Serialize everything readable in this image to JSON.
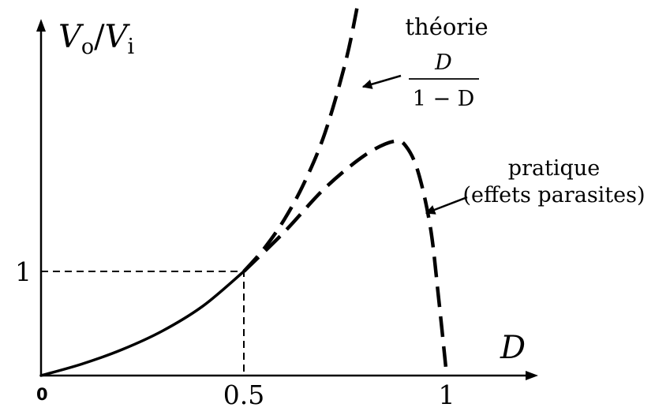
{
  "chart_data": {
    "type": "line",
    "title": "",
    "ylabel": {
      "V": "V",
      "o": "o",
      "slash": "/",
      "i": "i"
    },
    "xlabel": "D",
    "xlim": [
      0,
      1.3
    ],
    "ylim": [
      0,
      4.2
    ],
    "x_ticks": [
      {
        "value": 0,
        "label": "0"
      },
      {
        "value": 0.5,
        "label": "0.5"
      },
      {
        "value": 1,
        "label": "1"
      }
    ],
    "y_ticks": [
      {
        "value": 1,
        "label": "1"
      }
    ],
    "guide_point": {
      "x": 0.5,
      "y": 1
    },
    "series": [
      {
        "name": "théorie",
        "formula": "D/(1−D)",
        "style": "dashed beyond D = 0.5",
        "x": [
          0,
          0.1,
          0.2,
          0.3,
          0.4,
          0.5,
          0.55,
          0.6,
          0.65,
          0.7,
          0.75,
          0.78,
          0.8
        ],
        "y": [
          0,
          0.11,
          0.25,
          0.43,
          0.67,
          1.0,
          1.22,
          1.5,
          1.86,
          2.33,
          3.0,
          3.55,
          4.0
        ]
      },
      {
        "name": "pratique (effets parasites)",
        "style": "dashed beyond D = 0.5",
        "x": [
          0.5,
          0.6,
          0.7,
          0.8,
          0.87,
          0.9,
          0.93,
          0.96,
          0.98,
          1.0
        ],
        "y": [
          1.0,
          1.38,
          1.8,
          2.12,
          2.25,
          2.2,
          1.95,
          1.42,
          0.75,
          0.0
        ]
      }
    ],
    "annotations": {
      "theory_label": "théorie",
      "theory_formula_num": "D",
      "theory_formula_den": "1 − D",
      "practical_label_line1": "pratique",
      "practical_label_line2": "(effets parasites)"
    }
  }
}
